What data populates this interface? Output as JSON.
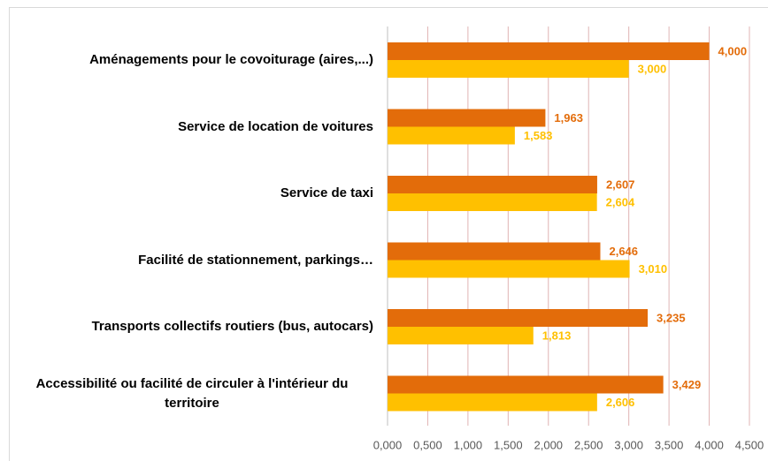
{
  "chart_data": {
    "type": "hbar",
    "categories": [
      "Aménagements pour le covoiturage (aires,...)",
      "Service de location de voitures",
      "Service de taxi",
      "Facilité de stationnement, parkings…",
      "Transports collectifs routiers (bus, autocars)",
      "Accessibilité ou facilité de circuler à l'intérieur du territoire"
    ],
    "series": [
      {
        "color": "#e36c0a",
        "values": [
          4.0,
          1.963,
          2.607,
          2.646,
          3.235,
          3.429
        ],
        "value_labels": [
          "4,000",
          "1,963",
          "2,607",
          "2,646",
          "3,235",
          "3,429"
        ]
      },
      {
        "color": "#ffc000",
        "values": [
          3.0,
          1.583,
          2.604,
          3.01,
          1.813,
          2.606
        ],
        "value_labels": [
          "3,000",
          "1,583",
          "2,604",
          "3,010",
          "1,813",
          "2,606"
        ]
      }
    ],
    "xlim": [
      0,
      4.5
    ],
    "xticks": [
      {
        "value": 0,
        "label": "0,000"
      },
      {
        "value": 0.5,
        "label": "0,500"
      },
      {
        "value": 1,
        "label": "1,000"
      },
      {
        "value": 1.5,
        "label": "1,500"
      },
      {
        "value": 2,
        "label": "2,000"
      },
      {
        "value": 2.5,
        "label": "2,500"
      },
      {
        "value": 3,
        "label": "3,000"
      },
      {
        "value": 3.5,
        "label": "3,500"
      },
      {
        "value": 4,
        "label": "4,000"
      },
      {
        "value": 4.5,
        "label": "4,500"
      }
    ],
    "grid": true
  }
}
